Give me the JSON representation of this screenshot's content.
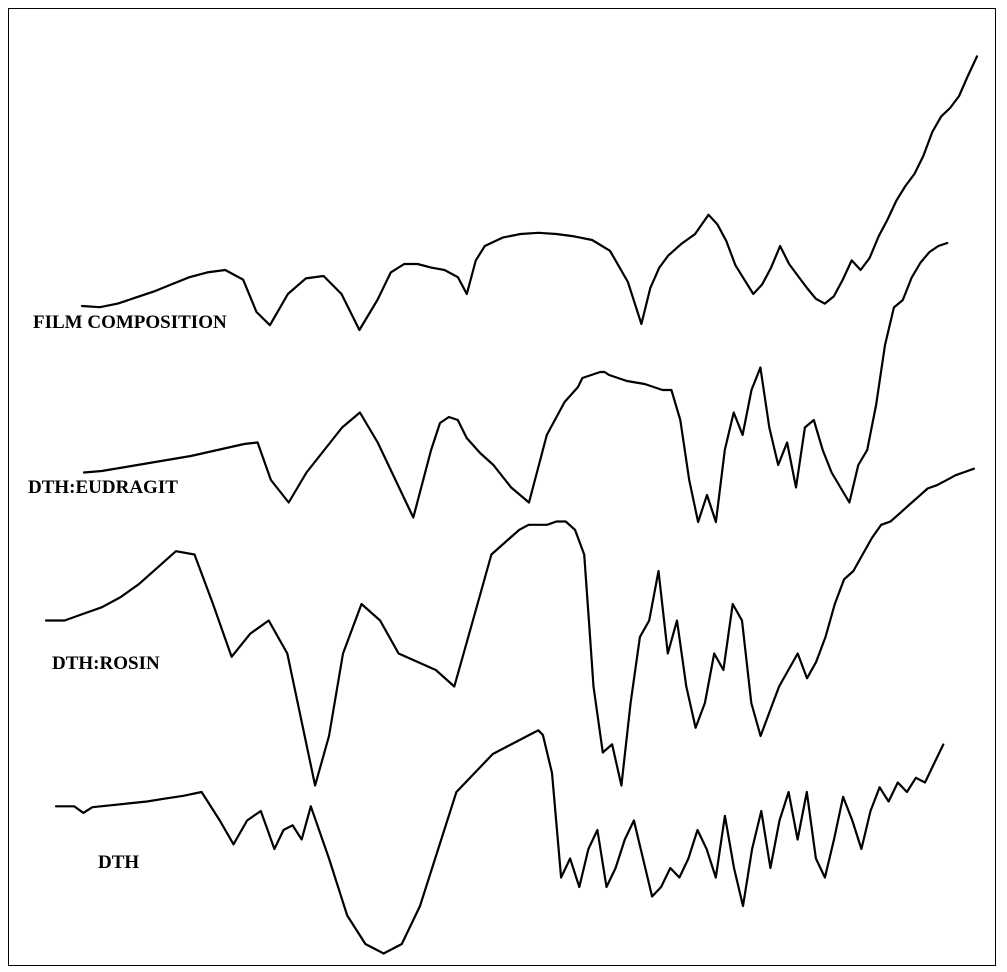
{
  "chart_data": {
    "type": "line",
    "title": "",
    "xlabel": "",
    "ylabel": "",
    "grid": false,
    "legend": "none",
    "series": [
      {
        "name": "FILM COMPOSITION",
        "x": [
          0,
          2,
          4,
          6,
          8,
          10,
          12,
          14,
          16,
          18,
          19.5,
          21,
          23,
          25,
          27,
          29,
          31,
          33,
          34.5,
          36,
          37.5,
          39,
          40.5,
          42,
          43,
          44,
          45,
          47,
          49,
          51,
          53,
          55,
          57,
          59,
          61,
          62.5,
          63.5,
          64.5,
          65.5,
          67,
          68.5,
          70,
          71,
          72,
          73,
          74,
          75,
          76,
          77,
          78,
          79,
          80,
          81,
          82,
          83,
          84,
          85,
          86,
          87,
          88,
          89,
          90,
          91,
          92,
          93,
          94,
          95,
          96,
          97,
          98,
          99,
          100
        ],
        "y": [
          0.2,
          0.19,
          0.22,
          0.27,
          0.32,
          0.38,
          0.44,
          0.48,
          0.5,
          0.42,
          0.15,
          0.04,
          0.3,
          0.43,
          0.45,
          0.3,
          0.0,
          0.25,
          0.48,
          0.55,
          0.55,
          0.52,
          0.5,
          0.44,
          0.3,
          0.58,
          0.7,
          0.77,
          0.8,
          0.81,
          0.8,
          0.78,
          0.75,
          0.66,
          0.4,
          0.05,
          0.35,
          0.52,
          0.62,
          0.72,
          0.8,
          0.96,
          0.88,
          0.74,
          0.54,
          0.42,
          0.3,
          0.38,
          0.52,
          0.7,
          0.55,
          0.45,
          0.35,
          0.26,
          0.22,
          0.28,
          0.42,
          0.58,
          0.5,
          0.6,
          0.78,
          0.92,
          1.08,
          1.2,
          1.3,
          1.45,
          1.65,
          1.78,
          1.85,
          1.95,
          2.12,
          2.28
        ]
      },
      {
        "name": "DTH:EUDRAGIT",
        "x": [
          0,
          2,
          4,
          6,
          8,
          10,
          12,
          13.5,
          15,
          16.5,
          18,
          19.5,
          21,
          23,
          25,
          27,
          29,
          31,
          33,
          35,
          37,
          39,
          40,
          41,
          42,
          43,
          44.5,
          46,
          48,
          50,
          52,
          54,
          55.5,
          56,
          57,
          58,
          58.5,
          59,
          60,
          61,
          62,
          63,
          64,
          65,
          66,
          67,
          68,
          69,
          70,
          71,
          72,
          73,
          74,
          75,
          76,
          77,
          78,
          79,
          80,
          81,
          82,
          83,
          84,
          85,
          86,
          87,
          88,
          89,
          90,
          91,
          92,
          93,
          94,
          95,
          96,
          97
        ],
        "y": [
          0.15,
          0.16,
          0.18,
          0.2,
          0.22,
          0.24,
          0.26,
          0.28,
          0.3,
          0.32,
          0.34,
          0.35,
          0.1,
          -0.05,
          0.15,
          0.3,
          0.45,
          0.55,
          0.35,
          0.1,
          -0.15,
          0.3,
          0.48,
          0.52,
          0.5,
          0.38,
          0.28,
          0.2,
          0.05,
          -0.05,
          0.4,
          0.62,
          0.72,
          0.78,
          0.8,
          0.82,
          0.82,
          0.8,
          0.78,
          0.76,
          0.75,
          0.74,
          0.72,
          0.7,
          0.7,
          0.5,
          0.1,
          -0.18,
          0.0,
          -0.18,
          0.3,
          0.55,
          0.4,
          0.7,
          0.85,
          0.45,
          0.2,
          0.35,
          0.05,
          0.45,
          0.5,
          0.3,
          0.15,
          0.05,
          -0.05,
          0.2,
          0.3,
          0.6,
          1.0,
          1.25,
          1.3,
          1.45,
          1.55,
          1.62,
          1.66,
          1.68
        ]
      },
      {
        "name": "DTH:ROSIN",
        "x": [
          0,
          2,
          4,
          6,
          8,
          10,
          12,
          14,
          16,
          18,
          20,
          22,
          24,
          26,
          27.5,
          29,
          30.5,
          32,
          34,
          36,
          38,
          40,
          42,
          44,
          46,
          48,
          50,
          51,
          52,
          53,
          54,
          55,
          56,
          57,
          58,
          58.5,
          59,
          60,
          61,
          62,
          63,
          64,
          65,
          66,
          67,
          68,
          69,
          70,
          71,
          72,
          73,
          74,
          75,
          76,
          77,
          78,
          79,
          80,
          81,
          82,
          83,
          84,
          85,
          86,
          87,
          88,
          89,
          90,
          91,
          92,
          93,
          94,
          95,
          96,
          97,
          98,
          99,
          100
        ],
        "y": [
          0.3,
          0.3,
          0.34,
          0.38,
          0.44,
          0.52,
          0.62,
          0.72,
          0.7,
          0.4,
          0.08,
          0.22,
          0.3,
          0.1,
          -0.3,
          -0.7,
          -0.4,
          0.1,
          0.4,
          0.3,
          0.1,
          0.05,
          0.0,
          -0.1,
          0.3,
          0.7,
          0.8,
          0.85,
          0.88,
          0.88,
          0.88,
          0.9,
          0.9,
          0.85,
          0.7,
          0.3,
          -0.1,
          -0.5,
          -0.45,
          -0.7,
          -0.2,
          0.2,
          0.3,
          0.6,
          0.1,
          0.3,
          -0.1,
          -0.35,
          -0.2,
          0.1,
          0.0,
          0.4,
          0.3,
          -0.2,
          -0.4,
          -0.25,
          -0.1,
          0.0,
          0.1,
          -0.05,
          0.05,
          0.2,
          0.4,
          0.55,
          0.6,
          0.7,
          0.8,
          0.88,
          0.9,
          0.95,
          1.0,
          1.05,
          1.1,
          1.12,
          1.15,
          1.18,
          1.2,
          1.22
        ]
      },
      {
        "name": "DTH",
        "x": [
          0,
          2,
          3,
          4,
          6,
          8,
          10,
          12,
          14,
          16,
          18,
          19.5,
          21,
          22.5,
          24,
          25,
          26,
          27,
          28,
          30,
          32,
          34,
          36,
          38,
          40,
          42,
          44,
          46,
          48,
          50,
          52,
          53,
          53.5,
          54.5,
          55.5,
          56.5,
          57.5,
          58.5,
          59.5,
          60.5,
          61.5,
          62.5,
          63.5,
          64.5,
          65.5,
          66.5,
          67.5,
          68.5,
          69.5,
          70.5,
          71.5,
          72.5,
          73.5,
          74.5,
          75.5,
          76.5,
          77.5,
          78.5,
          79.5,
          80.5,
          81.5,
          82.5,
          83.5,
          84.5,
          85.5,
          86.5,
          87.5,
          88.5,
          89.5,
          90.5,
          91.5,
          92.5,
          93.5,
          94.5,
          95.5,
          96.5,
          97.5
        ],
        "y": [
          0.25,
          0.25,
          0.18,
          0.24,
          0.26,
          0.28,
          0.3,
          0.33,
          0.36,
          0.4,
          0.1,
          -0.15,
          0.1,
          0.2,
          -0.2,
          0.0,
          0.05,
          -0.1,
          0.25,
          -0.3,
          -0.9,
          -1.2,
          -1.3,
          -1.2,
          -0.8,
          -0.2,
          0.4,
          0.6,
          0.8,
          0.9,
          1.0,
          1.05,
          1.0,
          0.6,
          -0.5,
          -0.3,
          -0.6,
          -0.2,
          0.0,
          -0.6,
          -0.4,
          -0.1,
          0.1,
          -0.3,
          -0.7,
          -0.6,
          -0.4,
          -0.5,
          -0.3,
          0.0,
          -0.2,
          -0.5,
          0.15,
          -0.4,
          -0.8,
          -0.2,
          0.2,
          -0.4,
          0.1,
          0.4,
          -0.1,
          0.4,
          -0.3,
          -0.5,
          -0.1,
          0.35,
          0.1,
          -0.2,
          0.2,
          0.45,
          0.3,
          0.5,
          0.4,
          0.55,
          0.5,
          0.7,
          0.9
        ]
      }
    ]
  }
}
